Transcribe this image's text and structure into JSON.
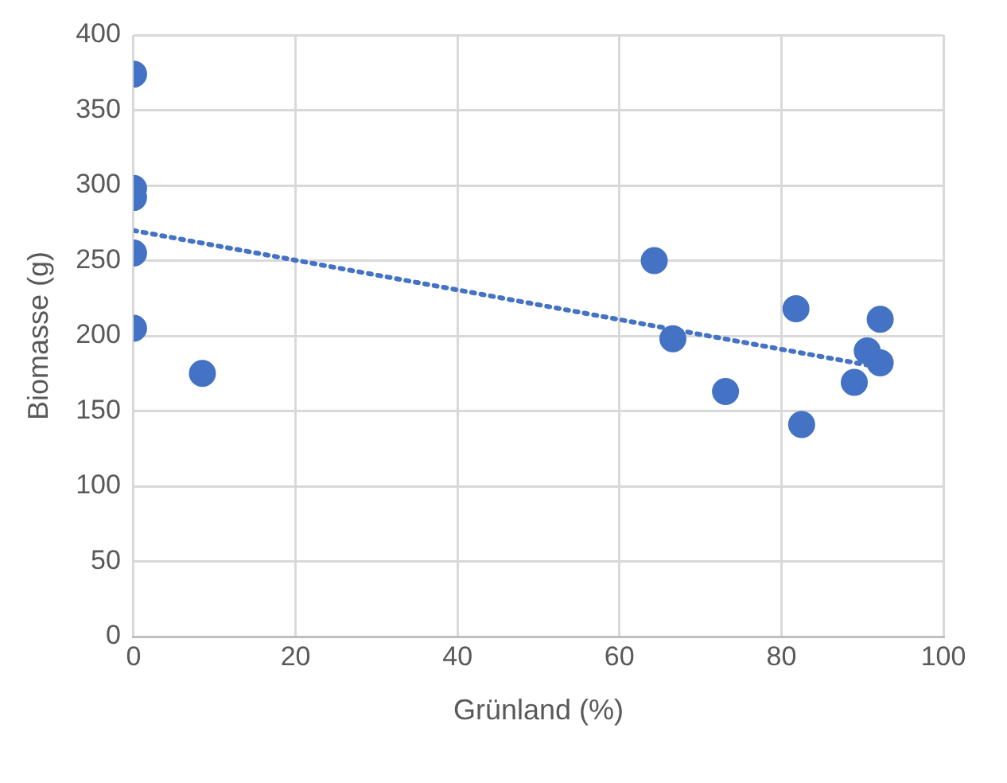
{
  "chart_data": {
    "type": "scatter",
    "xlabel": "Grünland (%)",
    "ylabel": "Biomasse (g)",
    "xlim": [
      0,
      100
    ],
    "xticks": [
      0,
      20,
      40,
      60,
      80,
      100
    ],
    "ylim": [
      0,
      400
    ],
    "yticks": [
      0,
      50,
      100,
      150,
      200,
      250,
      300,
      350,
      400
    ],
    "grid": true,
    "legend": false,
    "marker": "circle",
    "series": [
      {
        "type": "scatter",
        "color": "#4472c4",
        "x": [
          0,
          0,
          0,
          0,
          0,
          8.5,
          64.3,
          66.6,
          73.1,
          81.8,
          82.5,
          89,
          90.6,
          92.2,
          92.2
        ],
        "values": [
          374,
          298,
          292,
          255,
          205,
          175,
          250,
          198,
          163,
          218,
          141,
          169,
          190,
          211,
          182
        ]
      },
      {
        "type": "line",
        "color": "#4472c4",
        "line_style": "dotted",
        "marker": "none",
        "x": [
          0,
          92.2
        ],
        "values": [
          270,
          179
        ]
      }
    ]
  }
}
